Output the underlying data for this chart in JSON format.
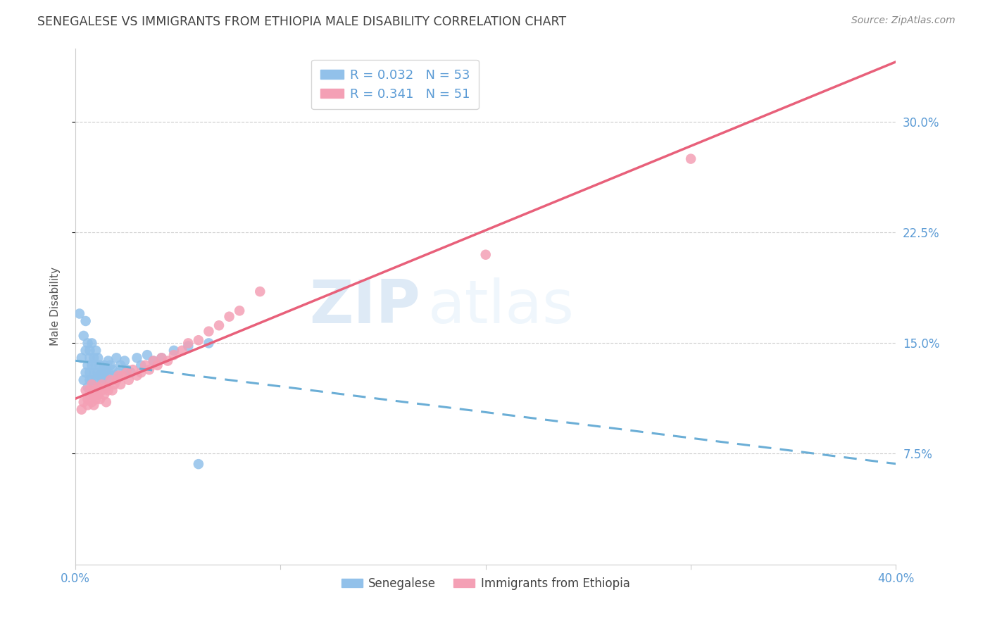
{
  "title": "SENEGALESE VS IMMIGRANTS FROM ETHIOPIA MALE DISABILITY CORRELATION CHART",
  "source": "Source: ZipAtlas.com",
  "ylabel": "Male Disability",
  "xlim": [
    0.0,
    0.4
  ],
  "ylim": [
    0.0,
    0.35
  ],
  "xticks": [
    0.0,
    0.1,
    0.2,
    0.3,
    0.4
  ],
  "xticklabels": [
    "0.0%",
    "",
    "",
    "",
    "40.0%"
  ],
  "ytick_positions": [
    0.075,
    0.15,
    0.225,
    0.3
  ],
  "ytick_labels": [
    "7.5%",
    "15.0%",
    "22.5%",
    "30.0%"
  ],
  "grid_color": "#cccccc",
  "background_color": "#ffffff",
  "title_color": "#404040",
  "axis_color": "#5b9bd5",
  "watermark_zip": "ZIP",
  "watermark_atlas": "atlas",
  "legend_R1": "R = 0.032",
  "legend_N1": "N = 53",
  "legend_R2": "R = 0.341",
  "legend_N2": "N = 51",
  "blue_color": "#92C1EA",
  "pink_color": "#F4A0B5",
  "line_blue_color": "#6BAED6",
  "line_pink_color": "#E8607A",
  "senegalese_x": [
    0.002,
    0.003,
    0.004,
    0.004,
    0.005,
    0.005,
    0.005,
    0.006,
    0.006,
    0.006,
    0.007,
    0.007,
    0.007,
    0.007,
    0.008,
    0.008,
    0.008,
    0.009,
    0.009,
    0.009,
    0.01,
    0.01,
    0.01,
    0.011,
    0.011,
    0.012,
    0.012,
    0.013,
    0.013,
    0.014,
    0.014,
    0.015,
    0.015,
    0.016,
    0.016,
    0.017,
    0.018,
    0.019,
    0.02,
    0.021,
    0.022,
    0.024,
    0.025,
    0.027,
    0.03,
    0.032,
    0.035,
    0.038,
    0.042,
    0.048,
    0.055,
    0.065,
    0.06
  ],
  "senegalese_y": [
    0.17,
    0.14,
    0.155,
    0.125,
    0.145,
    0.13,
    0.165,
    0.135,
    0.15,
    0.12,
    0.14,
    0.13,
    0.125,
    0.145,
    0.135,
    0.125,
    0.15,
    0.13,
    0.14,
    0.12,
    0.135,
    0.125,
    0.145,
    0.13,
    0.14,
    0.128,
    0.135,
    0.13,
    0.125,
    0.135,
    0.128,
    0.132,
    0.125,
    0.13,
    0.138,
    0.135,
    0.132,
    0.128,
    0.14,
    0.13,
    0.135,
    0.138,
    0.132,
    0.13,
    0.14,
    0.135,
    0.142,
    0.138,
    0.14,
    0.145,
    0.148,
    0.15,
    0.068
  ],
  "ethiopia_x": [
    0.003,
    0.004,
    0.005,
    0.006,
    0.006,
    0.007,
    0.007,
    0.008,
    0.008,
    0.009,
    0.009,
    0.01,
    0.01,
    0.011,
    0.011,
    0.012,
    0.013,
    0.013,
    0.014,
    0.015,
    0.015,
    0.016,
    0.017,
    0.018,
    0.019,
    0.02,
    0.021,
    0.022,
    0.023,
    0.025,
    0.026,
    0.028,
    0.03,
    0.032,
    0.034,
    0.036,
    0.038,
    0.04,
    0.042,
    0.045,
    0.048,
    0.052,
    0.055,
    0.06,
    0.065,
    0.07,
    0.075,
    0.08,
    0.09,
    0.2,
    0.3
  ],
  "ethiopia_y": [
    0.105,
    0.11,
    0.118,
    0.112,
    0.108,
    0.115,
    0.118,
    0.11,
    0.122,
    0.115,
    0.108,
    0.118,
    0.112,
    0.12,
    0.115,
    0.112,
    0.118,
    0.122,
    0.115,
    0.12,
    0.11,
    0.118,
    0.125,
    0.118,
    0.122,
    0.125,
    0.128,
    0.122,
    0.128,
    0.13,
    0.125,
    0.132,
    0.128,
    0.13,
    0.135,
    0.132,
    0.138,
    0.135,
    0.14,
    0.138,
    0.142,
    0.145,
    0.15,
    0.152,
    0.158,
    0.162,
    0.168,
    0.172,
    0.185,
    0.21,
    0.275
  ]
}
